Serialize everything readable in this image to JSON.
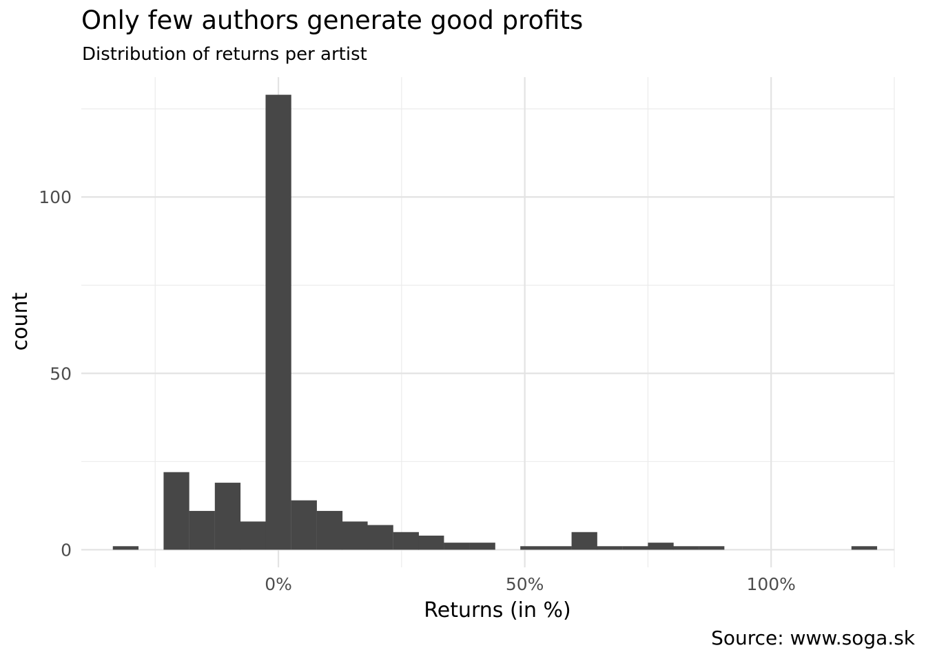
{
  "chart_data": {
    "type": "bar",
    "title": "Only few authors generate good profits",
    "subtitle": "Distribution of returns per artist",
    "xlabel": "Returns (in %)",
    "ylabel": "count",
    "caption": "Source: www.soga.sk",
    "xlim": [
      -0.4,
      1.25
    ],
    "ylim": [
      -5,
      134
    ],
    "x_ticks": [
      0,
      0.5,
      1.0
    ],
    "x_tick_labels": [
      "0%",
      "50%",
      "100%"
    ],
    "y_ticks": [
      0,
      50,
      100
    ],
    "y_tick_labels": [
      "0",
      "50",
      "100"
    ],
    "bar_color": "#474747",
    "grid": true,
    "bin_width": 0.0517,
    "bins": [
      {
        "start": -0.336,
        "count": 1
      },
      {
        "start": -0.284,
        "count": 0
      },
      {
        "start": -0.233,
        "count": 22
      },
      {
        "start": -0.181,
        "count": 11
      },
      {
        "start": -0.129,
        "count": 19
      },
      {
        "start": -0.078,
        "count": 8
      },
      {
        "start": -0.026,
        "count": 129
      },
      {
        "start": 0.026,
        "count": 14
      },
      {
        "start": 0.078,
        "count": 11
      },
      {
        "start": 0.129,
        "count": 8
      },
      {
        "start": 0.181,
        "count": 7
      },
      {
        "start": 0.233,
        "count": 5
      },
      {
        "start": 0.284,
        "count": 4
      },
      {
        "start": 0.336,
        "count": 2
      },
      {
        "start": 0.388,
        "count": 2
      },
      {
        "start": 0.439,
        "count": 0
      },
      {
        "start": 0.491,
        "count": 1
      },
      {
        "start": 0.543,
        "count": 1
      },
      {
        "start": 0.595,
        "count": 5
      },
      {
        "start": 0.646,
        "count": 1
      },
      {
        "start": 0.698,
        "count": 1
      },
      {
        "start": 0.75,
        "count": 2
      },
      {
        "start": 0.801,
        "count": 1
      },
      {
        "start": 0.853,
        "count": 1
      },
      {
        "start": 0.905,
        "count": 0
      },
      {
        "start": 0.956,
        "count": 0
      },
      {
        "start": 1.008,
        "count": 0
      },
      {
        "start": 1.06,
        "count": 0
      },
      {
        "start": 1.111,
        "count": 0
      },
      {
        "start": 1.163,
        "count": 1
      }
    ]
  }
}
